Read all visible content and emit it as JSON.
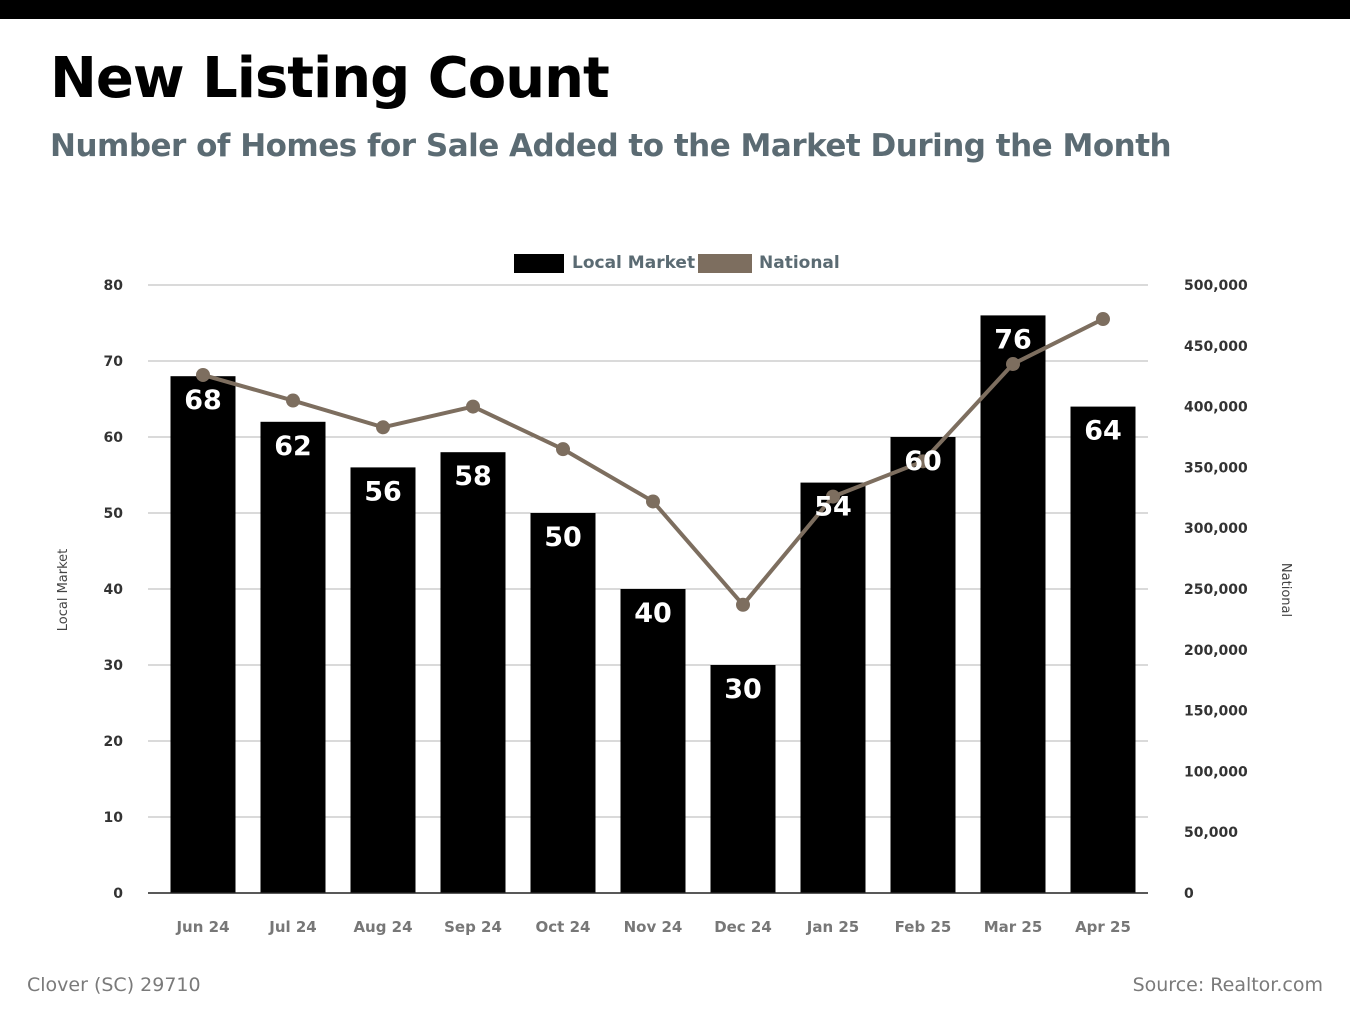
{
  "header": {
    "title": "New Listing Count",
    "subtitle": "Number of Homes for Sale Added to the Market During the Month"
  },
  "footer": {
    "location": "Clover (SC) 29710",
    "source": "Source: Realtor.com"
  },
  "colors": {
    "local_bar": "#000000",
    "national_line": "#7d6e5f",
    "legend_text": "#5b6b73",
    "axis_text": "#333333",
    "tick_x_text": "#777777",
    "grid": "#b5b5b5"
  },
  "chart_data": {
    "type": "bar",
    "categories": [
      "Jun 24",
      "Jul 24",
      "Aug 24",
      "Sep 24",
      "Oct 24",
      "Nov 24",
      "Dec 24",
      "Jan 25",
      "Feb 25",
      "Mar 25",
      "Apr 25"
    ],
    "series": [
      {
        "name": "Local Market",
        "type": "bar",
        "axis": "left",
        "values": [
          68,
          62,
          56,
          58,
          50,
          40,
          30,
          54,
          60,
          76,
          64
        ]
      },
      {
        "name": "National",
        "type": "line",
        "axis": "right",
        "values": [
          426000,
          405000,
          383000,
          400000,
          365000,
          322000,
          237000,
          326000,
          355000,
          435000,
          472000
        ]
      }
    ],
    "ylabel": "Local Market",
    "y2label": "National",
    "ylim": [
      0,
      80
    ],
    "y2lim": [
      0,
      500000
    ],
    "yticks": [
      "0",
      "10",
      "20",
      "30",
      "40",
      "50",
      "60",
      "70",
      "80"
    ],
    "y2ticks": [
      "0",
      "50,000",
      "100,000",
      "150,000",
      "200,000",
      "250,000",
      "300,000",
      "350,000",
      "400,000",
      "450,000",
      "500,000"
    ],
    "legend_position": "top-center",
    "grid": true,
    "data_labels": true
  }
}
